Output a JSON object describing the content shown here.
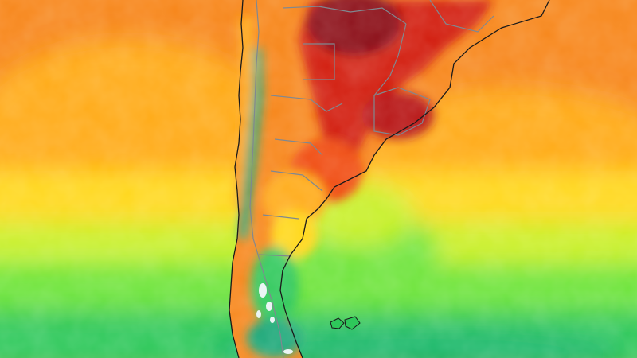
{
  "map": {
    "type": "temperature-heatmap",
    "region": "southern-south-america",
    "palette": {
      "hot_dark": "#8b0a14",
      "hot": "#d21a10",
      "warm": "#f04a10",
      "orange": "#f7861a",
      "amber": "#ffaa16",
      "yellow": "#ffd81c",
      "lime": "#c8f02a",
      "green": "#6ee43a",
      "deep_green": "#2ec85a",
      "teal": "#1aa878",
      "ice": "#e8f4f4",
      "border": "#808890",
      "coast": "#1a1a1a"
    },
    "text_labels": []
  }
}
